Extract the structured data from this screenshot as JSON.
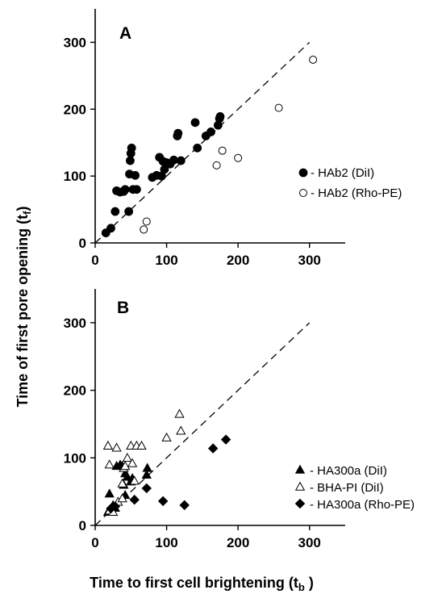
{
  "ylabel": {
    "text": "Time of first pore opening",
    "paren_open": "(t",
    "sub": "f",
    "paren_close": ")"
  },
  "xlabel": {
    "text": "Time to first cell brightening",
    "paren_open": "(t",
    "sub": "b",
    "paren_close": " )"
  },
  "chart_data": [
    {
      "type": "scatter",
      "panel": "A",
      "title": "",
      "xlim": [
        0,
        350
      ],
      "ylim": [
        0,
        350
      ],
      "xticks": [
        0,
        100,
        200,
        300
      ],
      "yticks": [
        0,
        100,
        200,
        300
      ],
      "grid": false,
      "legend_position": "middle-right",
      "diagonal": {
        "from": [
          0,
          0
        ],
        "to": [
          300,
          300
        ],
        "style": "dashed"
      },
      "series": [
        {
          "name": "- HAb2 (DiI)",
          "marker": "filled-circle",
          "points": [
            [
              15,
              15
            ],
            [
              22,
              22
            ],
            [
              28,
              47
            ],
            [
              30,
              78
            ],
            [
              35,
              76
            ],
            [
              40,
              77
            ],
            [
              42,
              80
            ],
            [
              47,
              47
            ],
            [
              48,
              103
            ],
            [
              49,
              123
            ],
            [
              50,
              134
            ],
            [
              51,
              142
            ],
            [
              53,
              80
            ],
            [
              56,
              101
            ],
            [
              58,
              80
            ],
            [
              80,
              98
            ],
            [
              86,
              101
            ],
            [
              90,
              128
            ],
            [
              93,
              100
            ],
            [
              95,
              122
            ],
            [
              97,
              110
            ],
            [
              100,
              120
            ],
            [
              105,
              118
            ],
            [
              110,
              124
            ],
            [
              115,
              160
            ],
            [
              116,
              164
            ],
            [
              120,
              123
            ],
            [
              140,
              180
            ],
            [
              143,
              142
            ],
            [
              155,
              160
            ],
            [
              162,
              166
            ],
            [
              172,
              176
            ],
            [
              174,
              186
            ],
            [
              175,
              189
            ]
          ]
        },
        {
          "name": "- HAb2 (Rho-PE)",
          "marker": "open-circle",
          "points": [
            [
              68,
              20
            ],
            [
              72,
              32
            ],
            [
              170,
              116
            ],
            [
              178,
              138
            ],
            [
              200,
              127
            ],
            [
              257,
              202
            ],
            [
              305,
              274
            ]
          ]
        }
      ]
    },
    {
      "type": "scatter",
      "panel": "B",
      "title": "",
      "xlim": [
        0,
        350
      ],
      "ylim": [
        0,
        350
      ],
      "xticks": [
        0,
        100,
        200,
        300
      ],
      "yticks": [
        0,
        100,
        200,
        300
      ],
      "grid": false,
      "legend_position": "lower-right",
      "diagonal": {
        "from": [
          0,
          0
        ],
        "to": [
          300,
          300
        ],
        "style": "dashed"
      },
      "series": [
        {
          "name": "- HA300a (DiI)",
          "marker": "filled-triangle",
          "points": [
            [
              18,
              20
            ],
            [
              20,
              47
            ],
            [
              25,
              30
            ],
            [
              28,
              26
            ],
            [
              30,
              88
            ],
            [
              35,
              90
            ],
            [
              38,
              88
            ],
            [
              40,
              60
            ],
            [
              42,
              45
            ],
            [
              42,
              77
            ],
            [
              45,
              72
            ],
            [
              50,
              65
            ],
            [
              52,
              70
            ],
            [
              72,
              75
            ],
            [
              73,
              85
            ]
          ]
        },
        {
          "name": "- BHA-PI (DiI)",
          "marker": "open-triangle",
          "points": [
            [
              18,
              118
            ],
            [
              20,
              90
            ],
            [
              20,
              22
            ],
            [
              25,
              20
            ],
            [
              30,
              115
            ],
            [
              32,
              35
            ],
            [
              38,
              40
            ],
            [
              38,
              62
            ],
            [
              40,
              85
            ],
            [
              42,
              88
            ],
            [
              45,
              100
            ],
            [
              50,
              118
            ],
            [
              52,
              92
            ],
            [
              55,
              66
            ],
            [
              58,
              118
            ],
            [
              65,
              118
            ],
            [
              100,
              130
            ],
            [
              118,
              165
            ],
            [
              120,
              140
            ]
          ]
        },
        {
          "name": "- HA300a (Rho-PE)",
          "marker": "filled-diamond",
          "points": [
            [
              22,
              25
            ],
            [
              28,
              28
            ],
            [
              55,
              38
            ],
            [
              72,
              55
            ],
            [
              95,
              36
            ],
            [
              125,
              30
            ],
            [
              165,
              114
            ],
            [
              183,
              127
            ]
          ]
        }
      ]
    }
  ]
}
